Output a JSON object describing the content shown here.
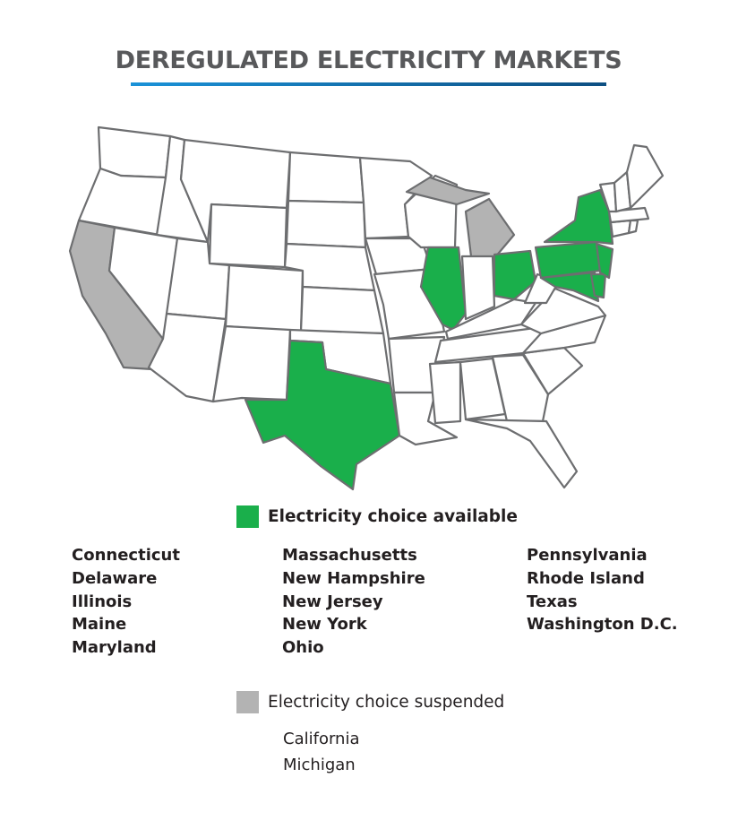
{
  "title": "DEREGULATED ELECTRICITY MARKETS",
  "colors": {
    "available": "#1aaf4b",
    "suspended": "#b3b3b3",
    "other": "#ffffff",
    "border": "#6d6e70"
  },
  "legend": {
    "available_label": "Electricity choice available",
    "suspended_label": "Electricity choice suspended"
  },
  "available_states": {
    "column1": [
      "Connecticut",
      "Delaware",
      "Illinois",
      "Maine",
      "Maryland"
    ],
    "column2": [
      "Massachusetts",
      "New Hampshire",
      "New Jersey",
      "New York",
      "Ohio"
    ],
    "column3": [
      "Pennsylvania",
      "Rhode Island",
      "Texas",
      "Washington D.C."
    ]
  },
  "suspended_states": [
    "California",
    "Michigan"
  ]
}
